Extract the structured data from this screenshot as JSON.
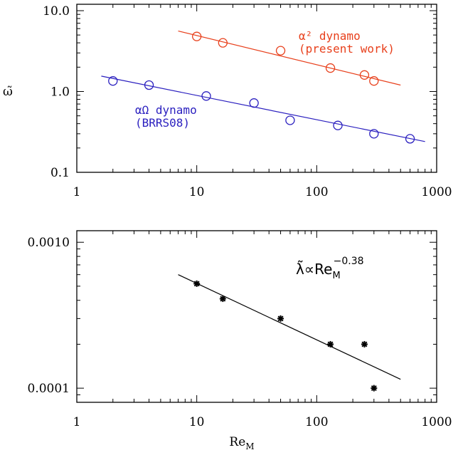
{
  "chart_data": [
    {
      "type": "scatter",
      "title": "",
      "xlabel": "",
      "ylabel": "ω̃",
      "xscale": "log",
      "yscale": "log",
      "xlim": [
        1,
        1000
      ],
      "ylim": [
        0.1,
        12
      ],
      "xtick_labels": [
        "1",
        "10",
        "100",
        "1000"
      ],
      "xtick_values": [
        1,
        10,
        100,
        1000
      ],
      "ytick_labels": [
        "0.1",
        "1.0",
        "10.0"
      ],
      "ytick_values": [
        0.1,
        1.0,
        10.0
      ],
      "series": [
        {
          "name": "α² dynamo (present work)",
          "color": "#e8401c",
          "marker": "circle",
          "x": [
            10,
            16.5,
            50,
            130,
            250,
            300
          ],
          "y": [
            4.8,
            4.0,
            3.2,
            1.95,
            1.6,
            1.35
          ],
          "fit_x": [
            7,
            500
          ],
          "fit_y": [
            5.6,
            1.2
          ]
        },
        {
          "name": "αΩ dynamo (BRRS08)",
          "color": "#2a1fbf",
          "marker": "circle",
          "x": [
            2,
            4,
            12,
            30,
            60,
            150,
            300,
            600
          ],
          "y": [
            1.35,
            1.2,
            0.88,
            0.72,
            0.44,
            0.38,
            0.3,
            0.26
          ],
          "fit_x": [
            1.6,
            800
          ],
          "fit_y": [
            1.55,
            0.24
          ]
        }
      ],
      "annotations": [
        {
          "lines": [
            "α² dynamo",
            "(present work)"
          ],
          "color": "#e8401c"
        },
        {
          "lines": [
            "αΩ dynamo",
            "(BRRS08)"
          ],
          "color": "#2a1fbf"
        }
      ]
    },
    {
      "type": "scatter",
      "title": "",
      "xlabel": "Re",
      "xlabel_sub": "M",
      "ylabel": "",
      "xscale": "log",
      "yscale": "log",
      "xlim": [
        1,
        1000
      ],
      "ylim": [
        8e-05,
        0.0012
      ],
      "xtick_labels": [
        "1",
        "10",
        "100",
        "1000"
      ],
      "xtick_values": [
        1,
        10,
        100,
        1000
      ],
      "ytick_labels": [
        "0.0001",
        "0.0010"
      ],
      "ytick_values": [
        0.0001,
        0.001
      ],
      "series": [
        {
          "name": "",
          "color": "#000000",
          "marker": "asterisk",
          "x": [
            10,
            16.5,
            50,
            130,
            250,
            300
          ],
          "y": [
            0.00052,
            0.00041,
            0.0003,
            0.0002,
            0.0002,
            0.0001
          ],
          "fit_x": [
            7,
            500
          ],
          "fit_y": [
            0.0006,
            0.000115
          ]
        }
      ],
      "annotation": {
        "symbol": "λ̃",
        "prop": "∝",
        "base": "Re",
        "sub": "M",
        "sup": "−0.38"
      }
    }
  ]
}
